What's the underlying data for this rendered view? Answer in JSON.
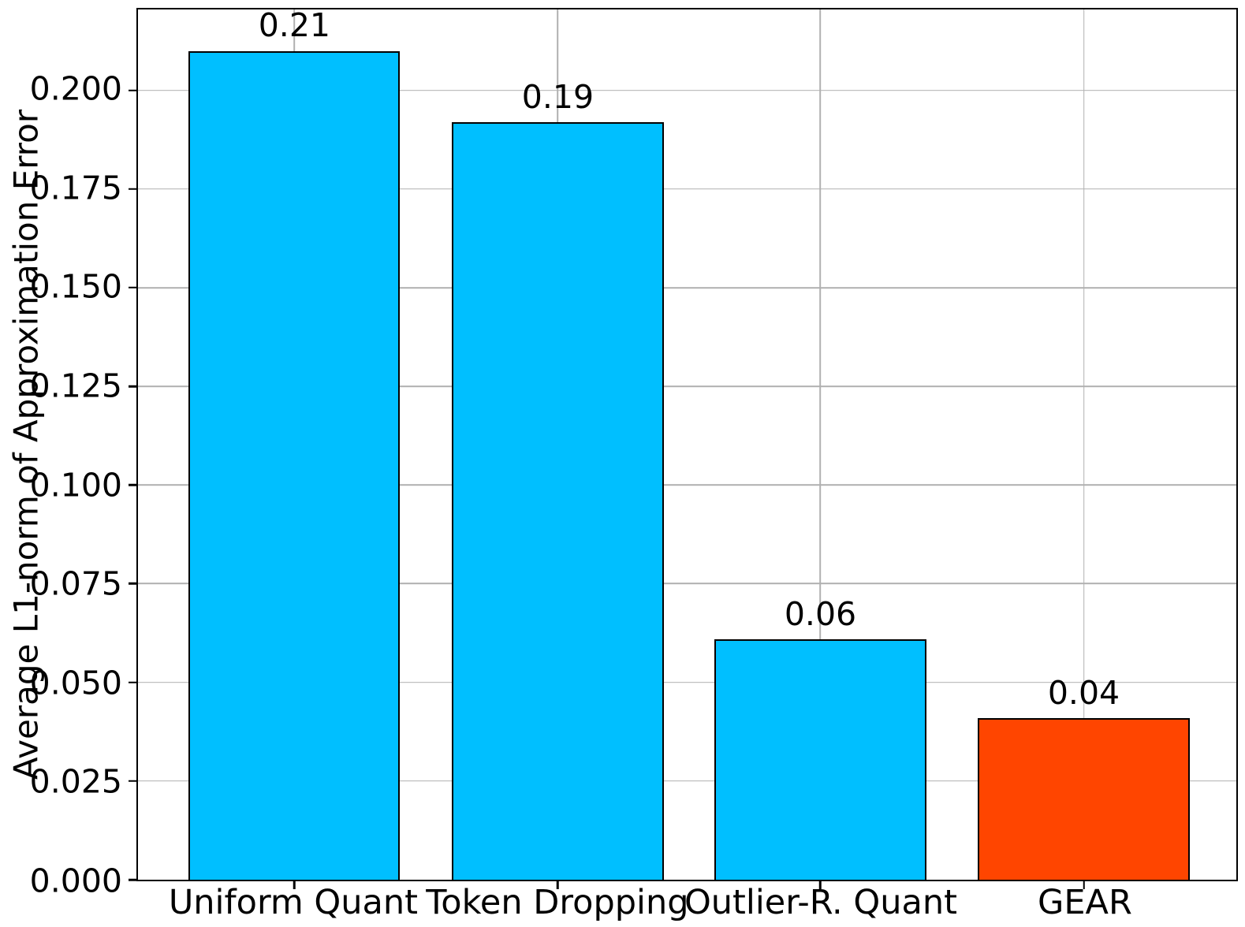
{
  "chart_data": {
    "type": "bar",
    "title": "",
    "categories": [
      "Uniform Quant",
      "Token Dropping",
      "Outlier-R. Quant",
      "GEAR"
    ],
    "values": [
      0.21,
      0.192,
      0.061,
      0.041
    ],
    "bar_labels": [
      "0.21",
      "0.19",
      "0.06",
      "0.04"
    ],
    "bar_colors": [
      "#00BFFF",
      "#00BFFF",
      "#00BFFF",
      "#FF4500"
    ],
    "bar_edge_color": "#000000",
    "xlabel": "",
    "ylabel": "Average L1-norm of Approximation Error",
    "ylim": [
      0,
      0.2205
    ],
    "yticks": [
      0.0,
      0.025,
      0.05,
      0.075,
      0.1,
      0.125,
      0.15,
      0.175,
      0.2
    ],
    "ytick_labels": [
      "0.000",
      "0.025",
      "0.050",
      "0.075",
      "0.100",
      "0.125",
      "0.150",
      "0.175",
      "0.200"
    ],
    "grid": true,
    "grid_color": "#b0b0b0",
    "legend_position": "none"
  }
}
